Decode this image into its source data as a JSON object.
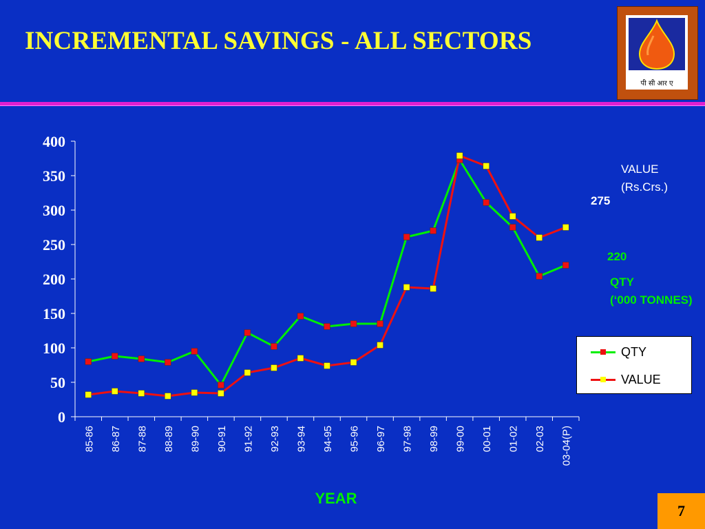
{
  "title": "INCREMENTAL  SAVINGS - ALL SECTORS",
  "logo": {
    "text": "पी सी आर ए",
    "icon": "oil-drop-icon"
  },
  "page_number": "7",
  "colors": {
    "background": "#0a2fc4",
    "title": "#ffff33",
    "qty_line": "#00ee00",
    "qty_marker": "#ee1111",
    "value_line": "#ee1111",
    "value_marker": "#ffff00",
    "page_box": "#ff9900"
  },
  "annotations": {
    "value_label_1": "VALUE",
    "value_label_2": "(Rs.Crs.)",
    "value_end": "275",
    "qty_end": "220",
    "qty_label_1": "QTY",
    "qty_label_2": "(‘000 TONNES)"
  },
  "chart_data": {
    "type": "line",
    "title": "",
    "xlabel": "YEAR",
    "ylabel": "",
    "ylim": [
      0,
      400
    ],
    "yticks": [
      0,
      50,
      100,
      150,
      200,
      250,
      300,
      350,
      400
    ],
    "grid": false,
    "legend_position": "right",
    "categories": [
      "85-86",
      "86-87",
      "87-88",
      "88-89",
      "89-90",
      "90-91",
      "91-92",
      "92-93",
      "93-94",
      "94-95",
      "95-96",
      "96-97",
      "97-98",
      "98-99",
      "99-00",
      "00-01",
      "01-02",
      "02-03",
      "03-04(P)"
    ],
    "series": [
      {
        "name": "QTY",
        "values": [
          80,
          88,
          84,
          79,
          95,
          46,
          122,
          102,
          146,
          131,
          135,
          135,
          261,
          270,
          373,
          311,
          275,
          204,
          220
        ]
      },
      {
        "name": "VALUE",
        "values": [
          32,
          37,
          34,
          30,
          35,
          34,
          64,
          71,
          85,
          74,
          79,
          104,
          188,
          186,
          379,
          364,
          291,
          260,
          275
        ]
      }
    ]
  }
}
